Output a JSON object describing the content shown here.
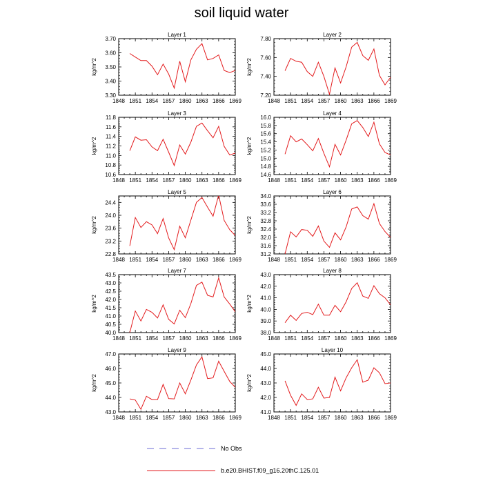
{
  "figure": {
    "title": "soil liquid water",
    "legend": [
      {
        "label": "No Obs",
        "color": "#6b6bd6",
        "style": "dashed"
      },
      {
        "label": "b.e20.BHIST.f09_g16.20thC.125.01",
        "color": "#e31a1c",
        "style": "solid"
      }
    ]
  },
  "chart_data": [
    {
      "type": "line",
      "title": "Layer 1",
      "ylabel": "kg/m^2",
      "xlim": [
        1848,
        1869
      ],
      "ylim": [
        3.3,
        3.7
      ],
      "xticks": [
        1848,
        1851,
        1854,
        1857,
        1860,
        1863,
        1866,
        1869
      ],
      "yticks": [
        3.3,
        3.4,
        3.5,
        3.6,
        3.7
      ],
      "ytick_labels": [
        "3.30",
        "3.40",
        "3.50",
        "3.60",
        "3.70"
      ],
      "x": [
        1850,
        1851,
        1852,
        1853,
        1854,
        1855,
        1856,
        1857,
        1858,
        1859,
        1860,
        1861,
        1862,
        1863,
        1864,
        1865,
        1866,
        1867,
        1868,
        1869
      ],
      "series": [
        {
          "color": "#e31a1c",
          "values": [
            3.595,
            3.57,
            3.545,
            3.545,
            3.505,
            3.445,
            3.52,
            3.45,
            3.35,
            3.54,
            3.395,
            3.55,
            3.625,
            3.665,
            3.55,
            3.56,
            3.585,
            3.475,
            3.46,
            3.475
          ]
        }
      ]
    },
    {
      "type": "line",
      "title": "Layer 2",
      "ylabel": "kg/m^2",
      "xlim": [
        1848,
        1869
      ],
      "ylim": [
        7.2,
        7.8
      ],
      "xticks": [
        1848,
        1851,
        1854,
        1857,
        1860,
        1863,
        1866,
        1869
      ],
      "yticks": [
        7.2,
        7.4,
        7.6,
        7.8
      ],
      "ytick_labels": [
        "7.20",
        "7.40",
        "7.60",
        "7.80"
      ],
      "x": [
        1850,
        1851,
        1852,
        1853,
        1854,
        1855,
        1856,
        1857,
        1858,
        1859,
        1860,
        1861,
        1862,
        1863,
        1864,
        1865,
        1866,
        1867,
        1868,
        1869
      ],
      "series": [
        {
          "color": "#e31a1c",
          "values": [
            7.46,
            7.59,
            7.56,
            7.55,
            7.45,
            7.4,
            7.55,
            7.4,
            7.21,
            7.49,
            7.33,
            7.5,
            7.71,
            7.76,
            7.62,
            7.57,
            7.69,
            7.41,
            7.31,
            7.39
          ]
        }
      ]
    },
    {
      "type": "line",
      "title": "Layer 3",
      "ylabel": "kg/m^2",
      "xlim": [
        1848,
        1869
      ],
      "ylim": [
        10.6,
        11.8
      ],
      "xticks": [
        1848,
        1851,
        1854,
        1857,
        1860,
        1863,
        1866,
        1869
      ],
      "yticks": [
        10.6,
        10.8,
        11.0,
        11.2,
        11.4,
        11.6,
        11.8
      ],
      "ytick_labels": [
        "10.6",
        "10.8",
        "11.0",
        "11.2",
        "11.4",
        "11.6",
        "11.8"
      ],
      "x": [
        1850,
        1851,
        1852,
        1853,
        1854,
        1855,
        1856,
        1857,
        1858,
        1859,
        1860,
        1861,
        1862,
        1863,
        1864,
        1865,
        1866,
        1867,
        1868,
        1869
      ],
      "series": [
        {
          "color": "#e31a1c",
          "values": [
            11.1,
            11.39,
            11.32,
            11.33,
            11.18,
            11.1,
            11.34,
            11.07,
            10.79,
            11.22,
            11.03,
            11.28,
            11.61,
            11.68,
            11.52,
            11.37,
            11.61,
            11.19,
            11.01,
            11.05
          ]
        }
      ]
    },
    {
      "type": "line",
      "title": "Layer 4",
      "ylabel": "kg/m^2",
      "xlim": [
        1848,
        1869
      ],
      "ylim": [
        14.6,
        16.0
      ],
      "xticks": [
        1848,
        1851,
        1854,
        1857,
        1860,
        1863,
        1866,
        1869
      ],
      "yticks": [
        14.6,
        14.8,
        15.0,
        15.2,
        15.4,
        15.6,
        15.8,
        16.0
      ],
      "ytick_labels": [
        "14.6",
        "14.8",
        "15.0",
        "15.2",
        "15.4",
        "15.6",
        "15.8",
        "16.0"
      ],
      "x": [
        1850,
        1851,
        1852,
        1853,
        1854,
        1855,
        1856,
        1857,
        1858,
        1859,
        1860,
        1861,
        1862,
        1863,
        1864,
        1865,
        1866,
        1867,
        1868,
        1869
      ],
      "series": [
        {
          "color": "#e31a1c",
          "values": [
            15.1,
            15.55,
            15.4,
            15.47,
            15.33,
            15.18,
            15.48,
            15.12,
            14.79,
            15.34,
            15.08,
            15.44,
            15.84,
            15.92,
            15.75,
            15.53,
            15.88,
            15.35,
            15.14,
            15.08
          ]
        }
      ]
    },
    {
      "type": "line",
      "title": "Layer 5",
      "ylabel": "kg/m^2",
      "xlim": [
        1848,
        1869
      ],
      "ylim": [
        22.8,
        24.6
      ],
      "xticks": [
        1848,
        1851,
        1854,
        1857,
        1860,
        1863,
        1866,
        1869
      ],
      "yticks": [
        22.8,
        23.2,
        23.6,
        24.0,
        24.4
      ],
      "ytick_labels": [
        "22.8",
        "23.2",
        "23.6",
        "24.0",
        "24.4"
      ],
      "x": [
        1850,
        1851,
        1852,
        1853,
        1854,
        1855,
        1856,
        1857,
        1858,
        1859,
        1860,
        1861,
        1862,
        1863,
        1864,
        1865,
        1866,
        1867,
        1868,
        1869
      ],
      "series": [
        {
          "color": "#e31a1c",
          "values": [
            23.05,
            23.93,
            23.62,
            23.8,
            23.7,
            23.43,
            23.9,
            23.3,
            22.93,
            23.66,
            23.3,
            23.85,
            24.4,
            24.55,
            24.25,
            23.97,
            24.63,
            23.84,
            23.55,
            23.37
          ]
        }
      ]
    },
    {
      "type": "line",
      "title": "Layer 6",
      "ylabel": "kg/m^2",
      "xlim": [
        1848,
        1869
      ],
      "ylim": [
        31.2,
        34.0
      ],
      "xticks": [
        1848,
        1851,
        1854,
        1857,
        1860,
        1863,
        1866,
        1869
      ],
      "yticks": [
        31.2,
        31.6,
        32.0,
        32.4,
        32.8,
        33.2,
        33.6,
        34.0
      ],
      "ytick_labels": [
        "31.2",
        "31.6",
        "32.0",
        "32.4",
        "32.8",
        "33.2",
        "33.6",
        "34.0"
      ],
      "x": [
        1850,
        1851,
        1852,
        1853,
        1854,
        1855,
        1856,
        1857,
        1858,
        1859,
        1860,
        1861,
        1862,
        1863,
        1864,
        1865,
        1866,
        1867,
        1868,
        1869
      ],
      "series": [
        {
          "color": "#e31a1c",
          "values": [
            31.2,
            32.27,
            32.02,
            32.38,
            32.34,
            32.05,
            32.55,
            31.82,
            31.52,
            32.22,
            31.88,
            32.5,
            33.37,
            33.47,
            33.05,
            32.88,
            33.63,
            32.67,
            32.28,
            32.0
          ]
        }
      ]
    },
    {
      "type": "line",
      "title": "Layer 7",
      "ylabel": "kg/m^2",
      "xlim": [
        1848,
        1869
      ],
      "ylim": [
        40.0,
        43.5
      ],
      "xticks": [
        1848,
        1851,
        1854,
        1857,
        1860,
        1863,
        1866,
        1869
      ],
      "yticks": [
        40.0,
        40.5,
        41.0,
        41.5,
        42.0,
        42.5,
        43.0,
        43.5
      ],
      "ytick_labels": [
        "40.0",
        "40.5",
        "41.0",
        "41.5",
        "42.0",
        "42.5",
        "43.0",
        "43.5"
      ],
      "x": [
        1850,
        1851,
        1852,
        1853,
        1854,
        1855,
        1856,
        1857,
        1858,
        1859,
        1860,
        1861,
        1862,
        1863,
        1864,
        1865,
        1866,
        1867,
        1868,
        1869
      ],
      "series": [
        {
          "color": "#e31a1c",
          "values": [
            40.0,
            41.3,
            40.7,
            41.4,
            41.22,
            40.88,
            41.68,
            40.8,
            40.52,
            41.35,
            40.9,
            41.75,
            42.85,
            43.05,
            42.25,
            42.15,
            43.3,
            42.15,
            41.72,
            41.25
          ]
        }
      ]
    },
    {
      "type": "line",
      "title": "Layer 8",
      "ylabel": "kg/m^2",
      "xlim": [
        1848,
        1869
      ],
      "ylim": [
        38.0,
        43.0
      ],
      "xticks": [
        1848,
        1851,
        1854,
        1857,
        1860,
        1863,
        1866,
        1869
      ],
      "yticks": [
        38.0,
        39.0,
        40.0,
        41.0,
        42.0,
        43.0
      ],
      "ytick_labels": [
        "38.0",
        "39.0",
        "40.0",
        "41.0",
        "42.0",
        "43.0"
      ],
      "x": [
        1850,
        1851,
        1852,
        1853,
        1854,
        1855,
        1856,
        1857,
        1858,
        1859,
        1860,
        1861,
        1862,
        1863,
        1864,
        1865,
        1866,
        1867,
        1868,
        1869
      ],
      "series": [
        {
          "color": "#e31a1c",
          "values": [
            38.85,
            39.5,
            39.05,
            39.65,
            39.75,
            39.55,
            40.45,
            39.5,
            39.5,
            40.35,
            39.8,
            40.65,
            41.8,
            42.3,
            41.15,
            40.95,
            42.05,
            41.35,
            41.0,
            40.4
          ]
        }
      ]
    },
    {
      "type": "line",
      "title": "Layer 9",
      "ylabel": "kg/m^2",
      "xlim": [
        1848,
        1869
      ],
      "ylim": [
        43.0,
        47.0
      ],
      "xticks": [
        1848,
        1851,
        1854,
        1857,
        1860,
        1863,
        1866,
        1869
      ],
      "yticks": [
        43.0,
        44.0,
        45.0,
        46.0,
        47.0
      ],
      "ytick_labels": [
        "43.0",
        "44.0",
        "45.0",
        "46.0",
        "47.0"
      ],
      "x": [
        1850,
        1851,
        1852,
        1853,
        1854,
        1855,
        1856,
        1857,
        1858,
        1859,
        1860,
        1861,
        1862,
        1863,
        1864,
        1865,
        1866,
        1867,
        1868,
        1869
      ],
      "series": [
        {
          "color": "#e31a1c",
          "values": [
            43.9,
            43.82,
            43.18,
            44.08,
            43.85,
            43.85,
            44.9,
            43.92,
            43.9,
            45.0,
            44.25,
            45.2,
            46.25,
            46.8,
            45.3,
            45.35,
            46.5,
            45.8,
            45.1,
            44.7
          ]
        }
      ]
    },
    {
      "type": "line",
      "title": "Layer 10",
      "ylabel": "kg/m^2",
      "xlim": [
        1848,
        1869
      ],
      "ylim": [
        41.0,
        45.0
      ],
      "xticks": [
        1848,
        1851,
        1854,
        1857,
        1860,
        1863,
        1866,
        1869
      ],
      "yticks": [
        41.0,
        42.0,
        43.0,
        44.0,
        45.0
      ],
      "ytick_labels": [
        "41.0",
        "42.0",
        "43.0",
        "44.0",
        "45.0"
      ],
      "x": [
        1850,
        1851,
        1852,
        1853,
        1854,
        1855,
        1856,
        1857,
        1858,
        1859,
        1860,
        1861,
        1862,
        1863,
        1864,
        1865,
        1866,
        1867,
        1868,
        1869
      ],
      "series": [
        {
          "color": "#e31a1c",
          "values": [
            43.15,
            42.15,
            41.45,
            42.25,
            41.85,
            41.9,
            42.7,
            41.95,
            42.0,
            43.4,
            42.45,
            43.35,
            44.05,
            44.6,
            43.05,
            43.2,
            44.05,
            43.7,
            42.95,
            43.0
          ]
        }
      ]
    }
  ]
}
